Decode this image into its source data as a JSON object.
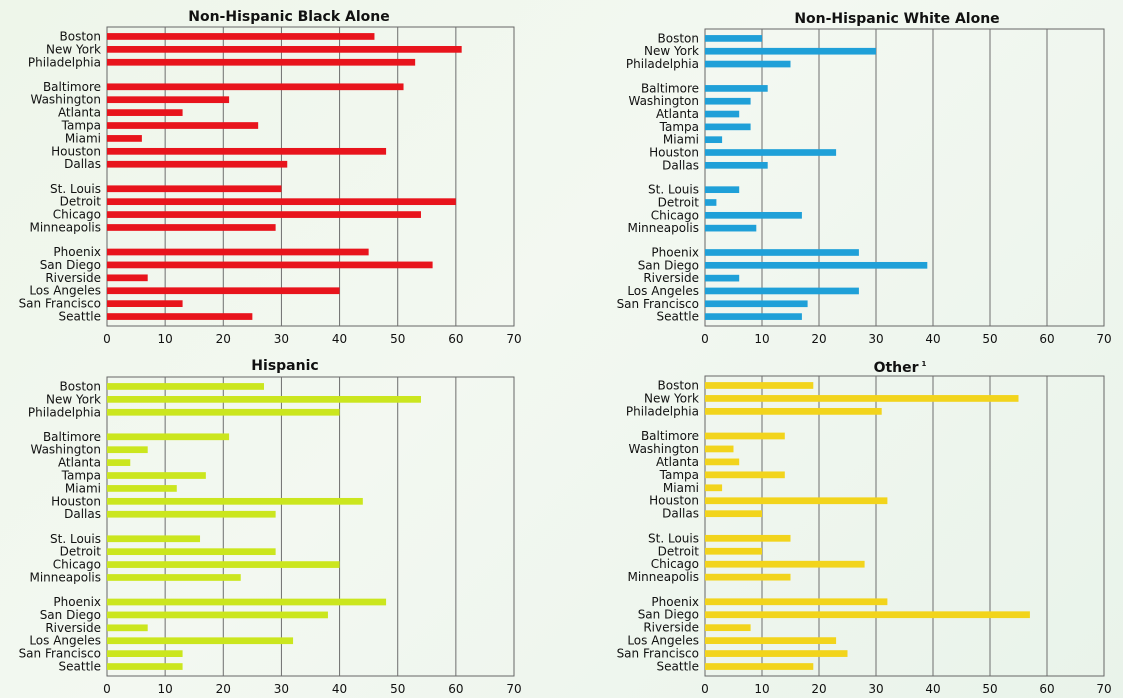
{
  "chart_data": [
    {
      "type": "bar",
      "orientation": "horizontal",
      "title": "Non-Hispanic Black Alone",
      "title_superscript": "",
      "color": "#e8141c",
      "xlim": [
        0,
        70
      ],
      "xticks": [
        0,
        10,
        20,
        30,
        40,
        50,
        60,
        70
      ],
      "grid": true,
      "categories": [
        "Boston",
        "New York",
        "Philadelphia",
        "Baltimore",
        "Washington",
        "Atlanta",
        "Tampa",
        "Miami",
        "Houston",
        "Dallas",
        "St. Louis",
        "Detroit",
        "Chicago",
        "Minneapolis",
        "Phoenix",
        "San Diego",
        "Riverside",
        "Los Angeles",
        "San Francisco",
        "Seattle"
      ],
      "groups": [
        3,
        7,
        4,
        6
      ],
      "values": [
        46,
        61,
        53,
        51,
        21,
        13,
        26,
        6,
        48,
        31,
        30,
        60,
        54,
        29,
        45,
        56,
        7,
        40,
        13,
        25
      ]
    },
    {
      "type": "bar",
      "orientation": "horizontal",
      "title": "Non-Hispanic White Alone",
      "title_superscript": "",
      "color": "#1fa0d8",
      "xlim": [
        0,
        70
      ],
      "xticks": [
        0,
        10,
        20,
        30,
        40,
        50,
        60,
        70
      ],
      "grid": true,
      "categories": [
        "Boston",
        "New York",
        "Philadelphia",
        "Baltimore",
        "Washington",
        "Atlanta",
        "Tampa",
        "Miami",
        "Houston",
        "Dallas",
        "St. Louis",
        "Detroit",
        "Chicago",
        "Minneapolis",
        "Phoenix",
        "San Diego",
        "Riverside",
        "Los Angeles",
        "San Francisco",
        "Seattle"
      ],
      "groups": [
        3,
        7,
        4,
        6
      ],
      "values": [
        10,
        30,
        15,
        11,
        8,
        6,
        8,
        3,
        23,
        11,
        6,
        2,
        17,
        9,
        27,
        39,
        6,
        27,
        18,
        17
      ]
    },
    {
      "type": "bar",
      "orientation": "horizontal",
      "title": "Hispanic",
      "title_superscript": "",
      "color": "#cbe61e",
      "xlim": [
        0,
        70
      ],
      "xticks": [
        0,
        10,
        20,
        30,
        40,
        50,
        60,
        70
      ],
      "grid": true,
      "categories": [
        "Boston",
        "New York",
        "Philadelphia",
        "Baltimore",
        "Washington",
        "Atlanta",
        "Tampa",
        "Miami",
        "Houston",
        "Dallas",
        "St. Louis",
        "Detroit",
        "Chicago",
        "Minneapolis",
        "Phoenix",
        "San Diego",
        "Riverside",
        "Los Angeles",
        "San Francisco",
        "Seattle"
      ],
      "groups": [
        3,
        7,
        4,
        6
      ],
      "values": [
        27,
        54,
        40,
        21,
        7,
        4,
        17,
        12,
        44,
        29,
        16,
        29,
        40,
        23,
        48,
        38,
        7,
        32,
        13,
        13
      ]
    },
    {
      "type": "bar",
      "orientation": "horizontal",
      "title": "Other",
      "title_superscript": "1",
      "color": "#f2d41c",
      "xlim": [
        0,
        70
      ],
      "xticks": [
        0,
        10,
        20,
        30,
        40,
        50,
        60,
        70
      ],
      "grid": true,
      "categories": [
        "Boston",
        "New York",
        "Philadelphia",
        "Baltimore",
        "Washington",
        "Atlanta",
        "Tampa",
        "Miami",
        "Houston",
        "Dallas",
        "St. Louis",
        "Detroit",
        "Chicago",
        "Minneapolis",
        "Phoenix",
        "San Diego",
        "Riverside",
        "Los Angeles",
        "San Francisco",
        "Seattle"
      ],
      "groups": [
        3,
        7,
        4,
        6
      ],
      "values": [
        19,
        55,
        31,
        14,
        5,
        6,
        14,
        3,
        32,
        10,
        15,
        10,
        28,
        15,
        32,
        57,
        8,
        23,
        25,
        19
      ]
    }
  ]
}
